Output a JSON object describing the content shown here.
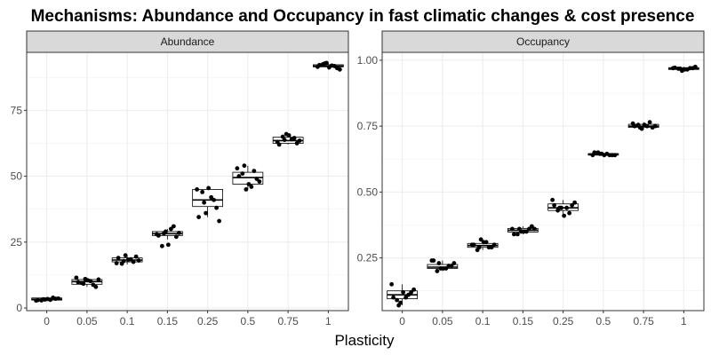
{
  "chart_data": {
    "type": "boxplot",
    "title": "Mechanisms: Abundance and Occupancy in fast climatic changes & cost presence",
    "xlabel": "Plasticity",
    "ylabel": "",
    "categories": [
      "0",
      "0.05",
      "0.1",
      "0.15",
      "0.25",
      "0.5",
      "0.75",
      "1"
    ],
    "grid": true,
    "facets": [
      {
        "strip": "Abundance",
        "ylim": [
          -1,
          97
        ],
        "yticks": [
          0,
          25,
          50,
          75
        ],
        "ytick_labels": [
          "0",
          "25",
          "50",
          "75"
        ],
        "boxes": [
          {
            "q1": 3.0,
            "median": 3.3,
            "q3": 3.8,
            "min": 2.8,
            "max": 4.0
          },
          {
            "q1": 9.0,
            "median": 10.0,
            "q3": 10.8,
            "min": 8.0,
            "max": 11.5
          },
          {
            "q1": 17.5,
            "median": 18.2,
            "q3": 19.0,
            "min": 16.5,
            "max": 20.0
          },
          {
            "q1": 27.5,
            "median": 28.2,
            "q3": 29.0,
            "min": 26.0,
            "max": 30.0
          },
          {
            "q1": 38.5,
            "median": 41.0,
            "q3": 45.0,
            "min": 34.5,
            "max": 45.5
          },
          {
            "q1": 47.0,
            "median": 49.5,
            "q3": 51.5,
            "min": 45.0,
            "max": 54.0
          },
          {
            "q1": 62.5,
            "median": 63.5,
            "q3": 64.8,
            "min": 62.0,
            "max": 66.0
          },
          {
            "q1": 91.5,
            "median": 91.8,
            "q3": 92.3,
            "min": 90.5,
            "max": 93.0
          }
        ],
        "points": [
          [
            2.8,
            3.1,
            3.5,
            2.9,
            3.6,
            3.2,
            3.9,
            3.0,
            3.4,
            3.3
          ],
          [
            11.5,
            10.2,
            8.0,
            9.5,
            10.8,
            11.0,
            8.8,
            9.8,
            10.5,
            9.2
          ],
          [
            17.0,
            18.5,
            19.5,
            16.8,
            18.0,
            20.0,
            17.5,
            19.0,
            18.3,
            17.8
          ],
          [
            28.0,
            30.0,
            27.0,
            23.5,
            28.5,
            29.0,
            31.0,
            27.5,
            24.0,
            28.3
          ],
          [
            45.0,
            42.0,
            38.0,
            44.0,
            33.0,
            36.0,
            41.0,
            34.5,
            45.5,
            40.0
          ],
          [
            53.0,
            46.0,
            49.0,
            51.0,
            48.0,
            45.0,
            52.0,
            50.0,
            47.0,
            54.0
          ],
          [
            63.0,
            64.0,
            62.5,
            65.0,
            63.5,
            66.0,
            64.5,
            62.0,
            65.5,
            63.8
          ],
          [
            91.5,
            92.0,
            91.0,
            92.5,
            90.5,
            93.0,
            91.8,
            92.2,
            91.3,
            92.8
          ]
        ]
      },
      {
        "strip": "Occupancy",
        "ylim": [
          0.05,
          1.03
        ],
        "yticks": [
          0.25,
          0.5,
          0.75,
          1.0
        ],
        "ytick_labels": [
          "0.25",
          "0.50",
          "0.75",
          "1.00"
        ],
        "boxes": [
          {
            "q1": 0.095,
            "median": 0.11,
            "q3": 0.125,
            "min": 0.07,
            "max": 0.15
          },
          {
            "q1": 0.21,
            "median": 0.215,
            "q3": 0.225,
            "min": 0.2,
            "max": 0.24
          },
          {
            "q1": 0.29,
            "median": 0.297,
            "q3": 0.305,
            "min": 0.28,
            "max": 0.32
          },
          {
            "q1": 0.348,
            "median": 0.355,
            "q3": 0.362,
            "min": 0.34,
            "max": 0.37
          },
          {
            "q1": 0.43,
            "median": 0.44,
            "q3": 0.455,
            "min": 0.41,
            "max": 0.47
          },
          {
            "q1": 0.64,
            "median": 0.643,
            "q3": 0.646,
            "min": 0.635,
            "max": 0.65
          },
          {
            "q1": 0.745,
            "median": 0.75,
            "q3": 0.757,
            "min": 0.74,
            "max": 0.765
          },
          {
            "q1": 0.965,
            "median": 0.968,
            "q3": 0.972,
            "min": 0.96,
            "max": 0.975
          }
        ],
        "points": [
          [
            0.15,
            0.1,
            0.12,
            0.09,
            0.13,
            0.08,
            0.11,
            0.1,
            0.12,
            0.07
          ],
          [
            0.24,
            0.21,
            0.22,
            0.2,
            0.23,
            0.21,
            0.22,
            0.24,
            0.21,
            0.23
          ],
          [
            0.3,
            0.31,
            0.29,
            0.28,
            0.3,
            0.32,
            0.29,
            0.3,
            0.31,
            0.29
          ],
          [
            0.36,
            0.35,
            0.37,
            0.34,
            0.36,
            0.35,
            0.36,
            0.34,
            0.35,
            0.36
          ],
          [
            0.47,
            0.44,
            0.45,
            0.43,
            0.46,
            0.44,
            0.42,
            0.45,
            0.41,
            0.44
          ],
          [
            0.64,
            0.645,
            0.64,
            0.65,
            0.64,
            0.645,
            0.64,
            0.65,
            0.64,
            0.645
          ],
          [
            0.76,
            0.75,
            0.745,
            0.755,
            0.75,
            0.74,
            0.765,
            0.75,
            0.755,
            0.745
          ],
          [
            0.97,
            0.965,
            0.97,
            0.968,
            0.975,
            0.96,
            0.97,
            0.972,
            0.965,
            0.968
          ]
        ]
      }
    ]
  }
}
